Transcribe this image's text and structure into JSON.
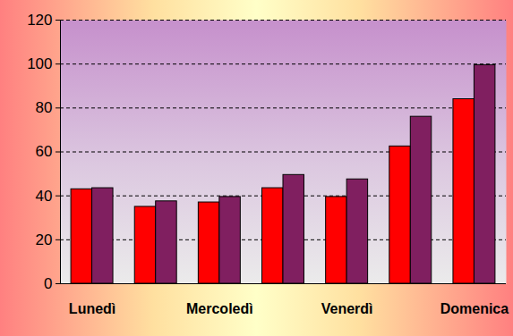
{
  "chart_data": {
    "type": "bar",
    "categories": [
      "Lunedì",
      null,
      "Mercoledì",
      null,
      "Venerdì",
      null,
      "Domenica"
    ],
    "series": [
      {
        "color": "#ff0000",
        "values": [
          43,
          35,
          37,
          43.5,
          39.5,
          62.5,
          84
        ]
      },
      {
        "color": "#801f60",
        "values": [
          43.5,
          37.5,
          39.5,
          49.5,
          47.5,
          76,
          99.5
        ]
      }
    ],
    "ylim": [
      0,
      120
    ],
    "yticks": [
      0,
      20,
      40,
      60,
      80,
      100,
      120
    ],
    "grid": true
  }
}
